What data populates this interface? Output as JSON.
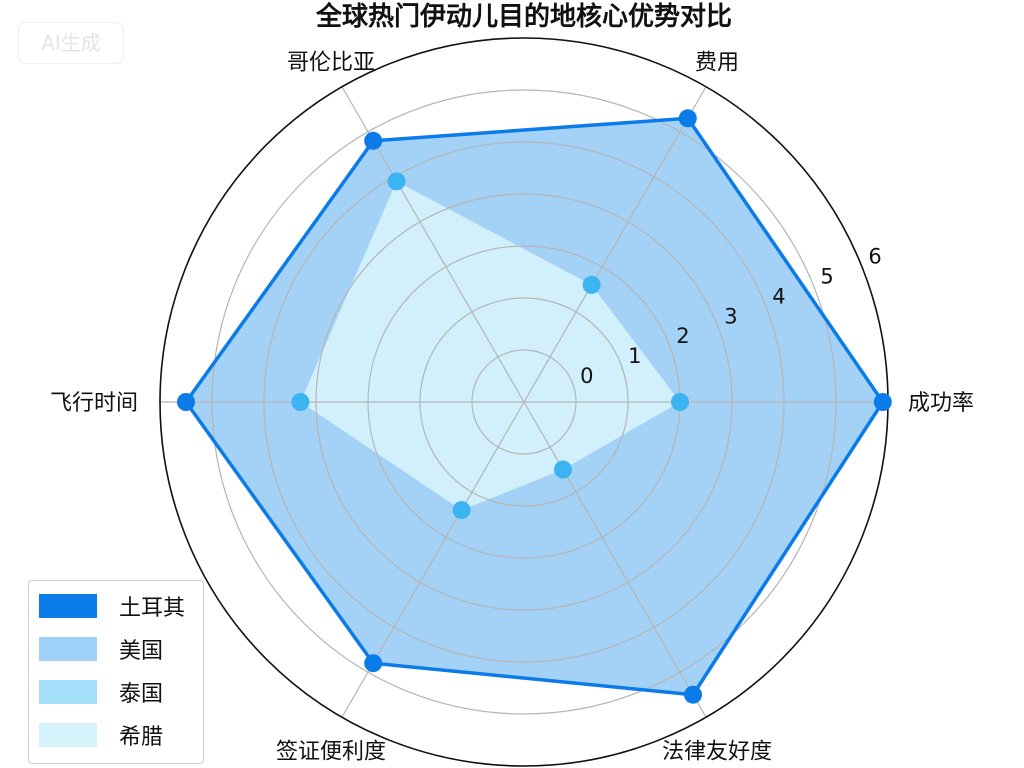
{
  "watermark": "AI生成",
  "chart_data": {
    "type": "radar",
    "title": "全球热门伊动儿目的地核心优势对比",
    "categories": [
      "成功率",
      "费用",
      "哥伦比亚",
      "飞行时间",
      "签证便利度",
      "法律友好度"
    ],
    "rlim": [
      -1,
      6
    ],
    "r_ticks": [
      "0",
      "1",
      "2",
      "3",
      "4",
      "5",
      "6"
    ],
    "grid": true,
    "legend_position": "lower-left",
    "series": [
      {
        "name": "土耳其",
        "values": [
          5.9,
          5.3,
          4.8,
          5.5,
          4.8,
          5.5
        ],
        "color": "#0a7be8",
        "style": "line-markers"
      },
      {
        "name": "美国",
        "values": [
          5.9,
          5.3,
          4.8,
          5.5,
          4.8,
          5.5
        ],
        "color": "#9fd0f7",
        "style": "fill"
      },
      {
        "name": "泰国",
        "values": [
          2.0,
          1.6,
          3.9,
          3.3,
          1.4,
          0.5
        ],
        "color": "#3db4f2",
        "style": "markers"
      },
      {
        "name": "希腊",
        "values": [
          2.0,
          1.6,
          3.9,
          3.3,
          1.4,
          0.5
        ],
        "color": "#d6f3fc",
        "style": "fill"
      }
    ]
  }
}
